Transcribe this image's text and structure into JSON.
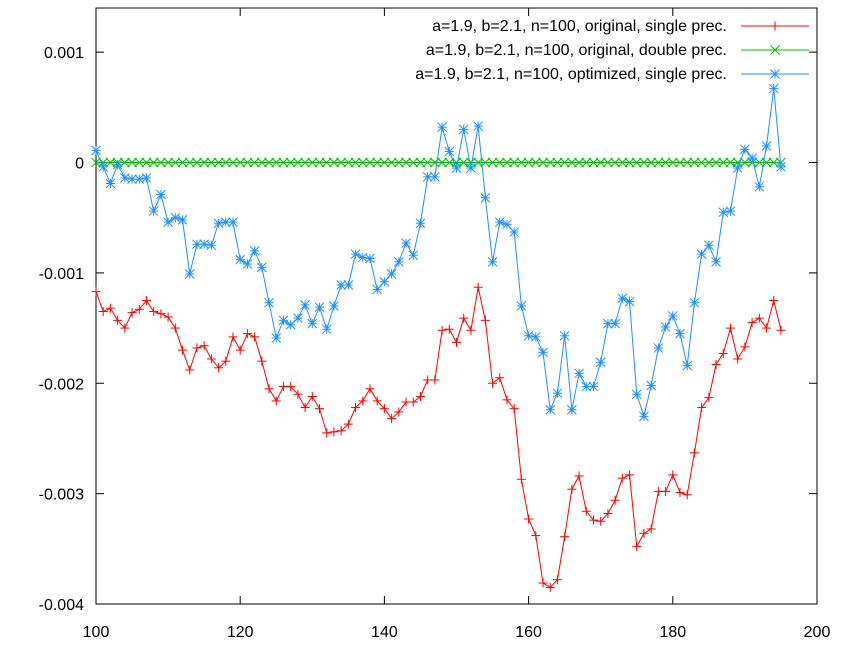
{
  "chart_data": {
    "type": "line",
    "title": "",
    "xlabel": "",
    "ylabel": "",
    "xlim": [
      100,
      200
    ],
    "ylim": [
      -0.004,
      0.0014
    ],
    "xticks": [
      100,
      120,
      140,
      160,
      180,
      200
    ],
    "xtick_labels": [
      "100",
      "120",
      "140",
      "160",
      "180",
      "200"
    ],
    "yticks": [
      0.001,
      0,
      -0.001,
      -0.002,
      -0.003,
      -0.004
    ],
    "ytick_labels": [
      "0.001",
      "0",
      "-0.001",
      "-0.002",
      "-0.003",
      "-0.004"
    ],
    "grid": false,
    "legend_position": "top-right",
    "x_start": 100,
    "x_step": 1,
    "series": [
      {
        "name": "a=1.9, b=2.1, n=100, original, single prec.",
        "color": "#ff0000",
        "marker": "plus",
        "values": [
          -0.00117,
          -0.00135,
          -0.00132,
          -0.00143,
          -0.0015,
          -0.00136,
          -0.00133,
          -0.00125,
          -0.00135,
          -0.00137,
          -0.0014,
          -0.0015,
          -0.0017,
          -0.00188,
          -0.00168,
          -0.00166,
          -0.00178,
          -0.00186,
          -0.0018,
          -0.00158,
          -0.0017,
          -0.00155,
          -0.00158,
          -0.0018,
          -0.00205,
          -0.00216,
          -0.00203,
          -0.00203,
          -0.0021,
          -0.00222,
          -0.00212,
          -0.00223,
          -0.00245,
          -0.00244,
          -0.00243,
          -0.00237,
          -0.00222,
          -0.00216,
          -0.00205,
          -0.00216,
          -0.00223,
          -0.00232,
          -0.00226,
          -0.00217,
          -0.00217,
          -0.00212,
          -0.00197,
          -0.00197,
          -0.00152,
          -0.00151,
          -0.00163,
          -0.00141,
          -0.00152,
          -0.00113,
          -0.00143,
          -0.002,
          -0.00195,
          -0.00215,
          -0.00223,
          -0.00287,
          -0.00323,
          -0.00338,
          -0.00381,
          -0.00385,
          -0.00378,
          -0.00339,
          -0.00296,
          -0.00284,
          -0.00316,
          -0.00324,
          -0.00325,
          -0.00318,
          -0.00306,
          -0.00286,
          -0.00283,
          -0.00348,
          -0.00336,
          -0.00332,
          -0.00298,
          -0.00298,
          -0.00283,
          -0.00299,
          -0.00301,
          -0.00263,
          -0.00222,
          -0.00213,
          -0.00183,
          -0.00173,
          -0.0015,
          -0.00178,
          -0.00167,
          -0.00145,
          -0.00141,
          -0.0015,
          -0.00125,
          -0.00152
        ]
      },
      {
        "name": "a=1.9, b=2.1, n=100, original, double prec.",
        "color": "#00c000",
        "marker": "cross",
        "values": [
          0,
          0,
          0,
          0,
          0,
          0,
          0,
          0,
          0,
          0,
          0,
          0,
          0,
          0,
          0,
          0,
          0,
          0,
          0,
          0,
          0,
          0,
          0,
          0,
          0,
          0,
          0,
          0,
          0,
          0,
          0,
          0,
          0,
          0,
          0,
          0,
          0,
          0,
          0,
          0,
          0,
          0,
          0,
          0,
          0,
          0,
          0,
          0,
          0,
          0,
          0,
          0,
          0,
          0,
          0,
          0,
          0,
          0,
          0,
          0,
          0,
          0,
          0,
          0,
          0,
          0,
          0,
          0,
          0,
          0,
          0,
          0,
          0,
          0,
          0,
          0,
          0,
          0,
          0,
          0,
          0,
          0,
          0,
          0,
          0,
          0,
          0,
          0,
          0,
          0,
          0,
          0,
          0,
          0,
          0,
          0
        ]
      },
      {
        "name": "a=1.9, b=2.1, n=100, optimized, single prec.",
        "color": "#1e90ff",
        "marker": "star",
        "values": [
          0.00011,
          -4e-05,
          -0.00019,
          -2e-05,
          -0.00014,
          -0.00015,
          -0.00015,
          -0.00014,
          -0.00044,
          -0.00029,
          -0.00054,
          -0.0005,
          -0.00052,
          -0.00101,
          -0.00074,
          -0.00074,
          -0.00075,
          -0.00055,
          -0.00054,
          -0.00054,
          -0.00088,
          -0.00092,
          -0.0008,
          -0.00095,
          -0.00127,
          -0.00159,
          -0.00143,
          -0.00147,
          -0.00141,
          -0.00129,
          -0.00146,
          -0.00131,
          -0.00151,
          -0.0013,
          -0.00111,
          -0.00111,
          -0.00083,
          -0.00086,
          -0.00087,
          -0.00115,
          -0.00108,
          -0.00101,
          -0.0009,
          -0.00073,
          -0.00084,
          -0.00055,
          -0.00013,
          -0.00013,
          0.00032,
          0.0001,
          -5e-05,
          0.0003,
          -5e-05,
          0.00033,
          -0.00032,
          -0.0009,
          -0.00054,
          -0.00056,
          -0.00063,
          -0.0013,
          -0.00157,
          -0.00158,
          -0.00172,
          -0.00224,
          -0.00209,
          -0.00157,
          -0.00224,
          -0.00191,
          -0.00203,
          -0.00203,
          -0.00181,
          -0.00146,
          -0.00146,
          -0.00123,
          -0.00126,
          -0.0021,
          -0.0023,
          -0.00202,
          -0.00168,
          -0.00149,
          -0.00139,
          -0.00155,
          -0.00184,
          -0.00127,
          -0.00083,
          -0.00075,
          -0.0009,
          -0.00045,
          -0.00044,
          -5e-05,
          0.00012,
          4e-05,
          -0.00022,
          0.00015,
          0.00067,
          -4e-05
        ]
      }
    ]
  }
}
